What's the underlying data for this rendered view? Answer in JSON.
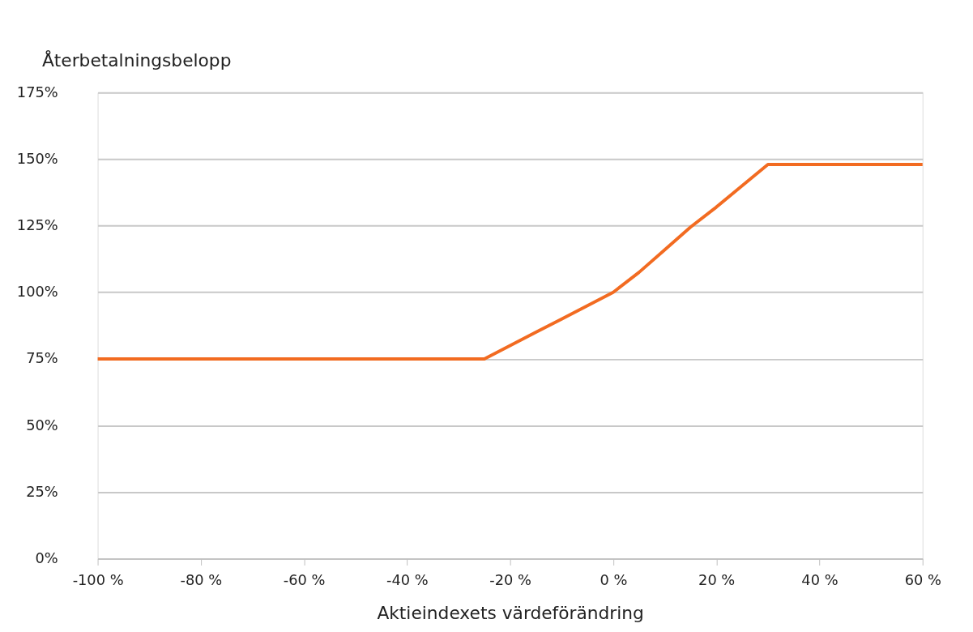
{
  "chart_data": {
    "type": "line",
    "xlabel": "Aktieindexets värdeförändring",
    "ylabel": "Återbetalningsbelopp",
    "x": [
      -100,
      -25,
      -20,
      -15,
      -10,
      -5,
      0,
      5,
      10,
      15,
      20,
      25,
      30,
      60
    ],
    "series": [
      {
        "color": "#f26b21",
        "values": [
          75,
          75,
          80,
          85,
          90,
          95,
          100,
          107.5,
          116,
          124.5,
          132,
          140,
          148,
          148
        ]
      }
    ],
    "xlim": [
      -100,
      60
    ],
    "xticks": [
      {
        "value": -100,
        "label": "-100 %"
      },
      {
        "value": -80,
        "label": "-80 %"
      },
      {
        "value": -60,
        "label": "-60 %"
      },
      {
        "value": -40,
        "label": "-40 %"
      },
      {
        "value": -20,
        "label": "-20 %"
      },
      {
        "value": 0,
        "label": "0 %"
      },
      {
        "value": 20,
        "label": "20 %"
      },
      {
        "value": 40,
        "label": "40 %"
      },
      {
        "value": 60,
        "label": "60 %"
      }
    ],
    "ylim": [
      0,
      175
    ],
    "yticks": [
      {
        "value": 0,
        "label": "0%"
      },
      {
        "value": 25,
        "label": "25%"
      },
      {
        "value": 50,
        "label": "50%"
      },
      {
        "value": 75,
        "label": "75%"
      },
      {
        "value": 100,
        "label": "100%"
      },
      {
        "value": 125,
        "label": "125%"
      },
      {
        "value": 150,
        "label": "150%"
      },
      {
        "value": 175,
        "label": "175%"
      }
    ],
    "grid": "y",
    "marker": "none",
    "line_style": "solid"
  }
}
